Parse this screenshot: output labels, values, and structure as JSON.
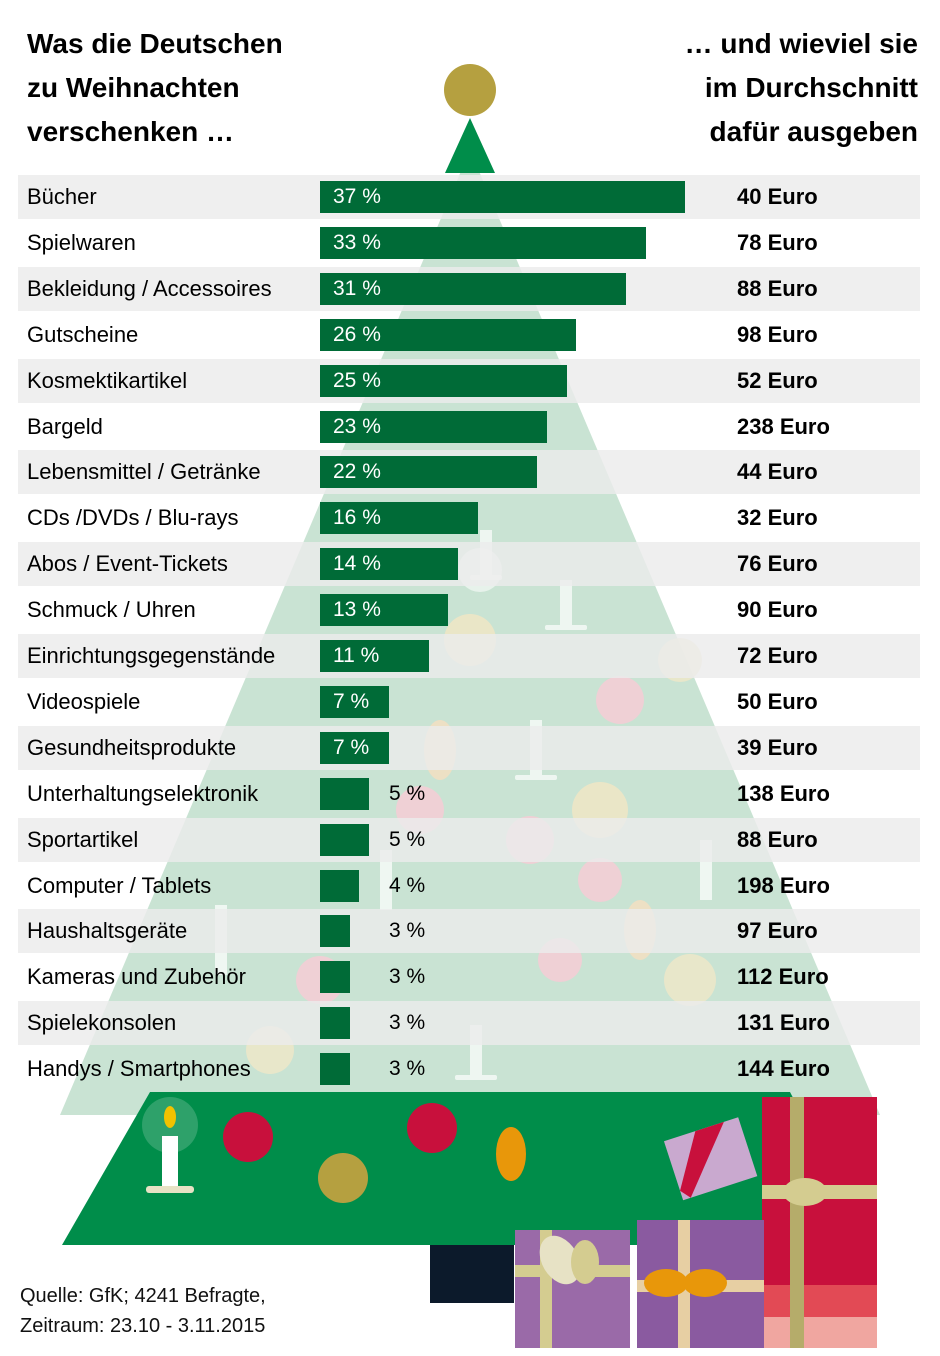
{
  "title_left": "Was die Deutschen\nzu Weihnachten\nverschenken …",
  "title_right": "… und wieviel sie\nim Durchschnitt\ndafür ausgeben",
  "source": "Quelle: GfK; 4241 Befragte,\nZeitraum: 23.10 - 3.11.2015",
  "colors": {
    "bar": "#006b37",
    "tree_dark": "#008d4a",
    "tree_light": "#c9e3d3",
    "row_bg": "#ececec",
    "gold": "#b5a040",
    "red": "#c8103c",
    "orange": "#e8970a",
    "purple": "#9a6aa8"
  },
  "chart_data": {
    "type": "bar",
    "orientation": "horizontal",
    "categories": [
      "Bücher",
      "Spielwaren",
      "Bekleidung / Accessoires",
      "Gutscheine",
      "Kosmektikartikel",
      "Bargeld",
      "Lebensmittel / Getränke",
      "CDs /DVDs / Blu-rays",
      "Abos / Event-Tickets",
      "Schmuck / Uhren",
      "Einrichtungsgegenstände",
      "Videospiele",
      "Gesundheitsprodukte",
      "Unterhaltungselektronik",
      "Sportartikel",
      "Computer / Tablets",
      "Haushaltsgeräte",
      "Kameras und Zubehör",
      "Spielekonsolen",
      "Handys / Smartphones"
    ],
    "series": [
      {
        "values": [
          37,
          33,
          31,
          26,
          25,
          23,
          22,
          16,
          14,
          13,
          11,
          7,
          7,
          5,
          5,
          4,
          3,
          3,
          3,
          3
        ]
      },
      {
        "values": [
          40,
          78,
          88,
          98,
          52,
          238,
          44,
          32,
          76,
          90,
          72,
          50,
          39,
          138,
          88,
          198,
          97,
          112,
          131,
          144
        ]
      }
    ],
    "pct_labels": [
      "37 %",
      "33 %",
      "31 %",
      "26 %",
      "25 %",
      "23 %",
      "22 %",
      "16 %",
      "14 %",
      "13 %",
      "11 %",
      "7 %",
      "7 %",
      "5 %",
      "5 %",
      "4 %",
      "3 %",
      "3 %",
      "3 %",
      "3 %"
    ],
    "euro_labels": [
      "40 Euro",
      "78 Euro",
      "88 Euro",
      "98 Euro",
      "52 Euro",
      "238 Euro",
      "44 Euro",
      "32 Euro",
      "76 Euro",
      "90 Euro",
      "72 Euro",
      "50 Euro",
      "39 Euro",
      "138 Euro",
      "88 Euro",
      "198 Euro",
      "97 Euro",
      "112 Euro",
      "131 Euro",
      "144 Euro"
    ]
  }
}
